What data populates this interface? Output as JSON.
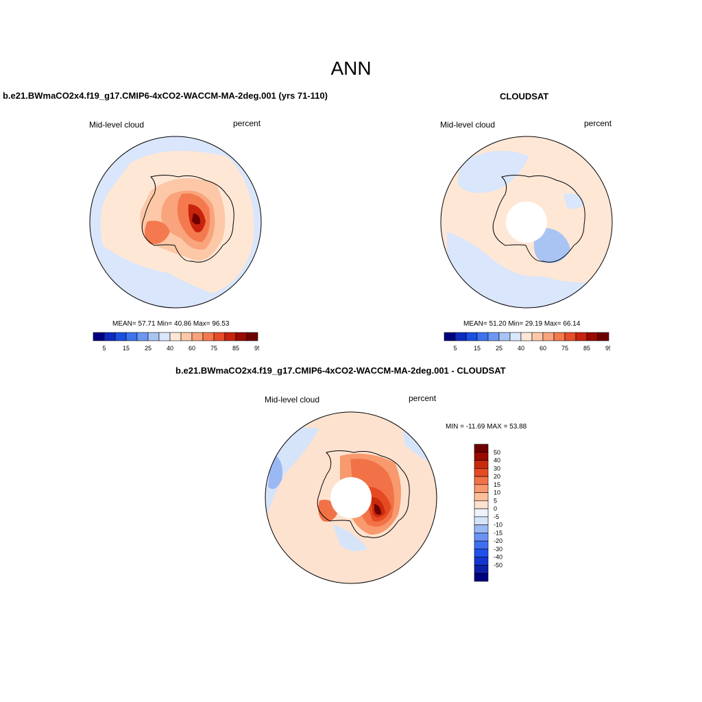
{
  "main_title": "ANN",
  "colors": {
    "abs_scale": [
      "#00007f",
      "#0d2bbf",
      "#1a4fe0",
      "#3d74ee",
      "#6d98f2",
      "#a9c4f2",
      "#d9e6fb",
      "#ffe7d6",
      "#fcc8a8",
      "#f9a47c",
      "#f4794f",
      "#e84d2a",
      "#c8230d",
      "#9a0a00",
      "#6e0000"
    ],
    "diff_scale": [
      "#00007f",
      "#0d1fa8",
      "#1434cf",
      "#1f52ea",
      "#3e70f0",
      "#6a92f2",
      "#9ab8f4",
      "#d6e4fa",
      "#eef3fd",
      "#fde2cf",
      "#fcbf9a",
      "#f8996e",
      "#f27247",
      "#e64a23",
      "#c82a0e",
      "#9a0a00",
      "#6e0000"
    ]
  },
  "panels": {
    "test": {
      "case_title": "b.e21.BWmaCO2x4.f19_g17.CMIP6-4xCO2-WACCM-MA-2deg.001 (yrs 71-110)",
      "left_label": "Mid-level cloud",
      "right_label": "percent",
      "stats": "MEAN=  57.71  Min=  40.86  Max=  96.53",
      "colorbar_ticks": [
        "5",
        "15",
        "25",
        "40",
        "60",
        "75",
        "85",
        "95"
      ]
    },
    "obs": {
      "case_title": "CLOUDSAT",
      "left_label": "Mid-level cloud",
      "right_label": "percent",
      "stats": "MEAN=  51.20  Min=  29.19  Max=  66.14",
      "colorbar_ticks": [
        "5",
        "15",
        "25",
        "40",
        "60",
        "75",
        "85",
        "95"
      ]
    },
    "diff": {
      "case_title": "b.e21.BWmaCO2x4.f19_g17.CMIP6-4xCO2-WACCM-MA-2deg.001 - CLOUDSAT",
      "left_label": "Mid-level cloud",
      "right_label": "percent",
      "stats": "MIN = -11.69 MAX =  53.88",
      "colorbar_ticks": [
        "50",
        "40",
        "30",
        "20",
        "15",
        "10",
        "5",
        "0",
        "-5",
        "-10",
        "-15",
        "-20",
        "-30",
        "-40",
        "-50"
      ]
    }
  }
}
